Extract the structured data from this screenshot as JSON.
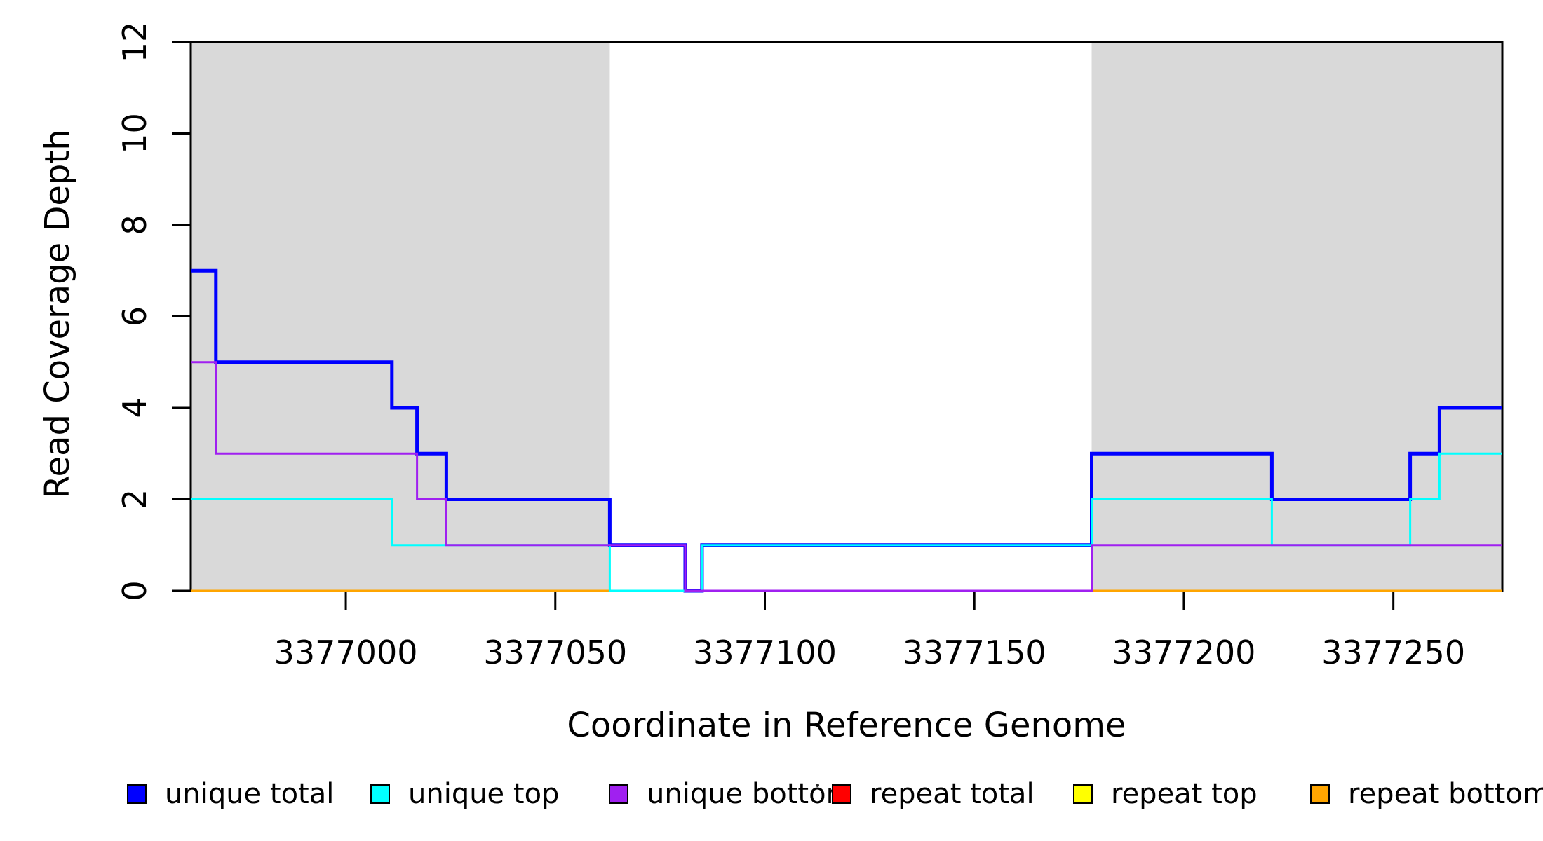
{
  "chart_data": {
    "type": "line",
    "subtype": "step",
    "title": "",
    "xlabel": "Coordinate in Reference Genome",
    "ylabel": "Read Coverage Depth",
    "xlim": [
      3376963,
      3377276
    ],
    "ylim": [
      0,
      12
    ],
    "x_ticks": [
      3377000,
      3377050,
      3377100,
      3377150,
      3377200,
      3377250
    ],
    "y_ticks": [
      0,
      2,
      4,
      6,
      8,
      10,
      12
    ],
    "grid": false,
    "background_color": "#ffffff",
    "axis_color": "#000000",
    "shade_color": "#d9d9d9",
    "shaded_regions": [
      {
        "x0": 3376963,
        "x1": 3377063
      },
      {
        "x0": 3377178,
        "x1": 3377276
      }
    ],
    "series": [
      {
        "name": "repeat total",
        "color": "#FF0000",
        "line_width": 3,
        "steps": [
          [
            3376963,
            0
          ],
          [
            3377276,
            0
          ]
        ]
      },
      {
        "name": "repeat top",
        "color": "#FFFF00",
        "line_width": 3,
        "steps": [
          [
            3376963,
            0
          ],
          [
            3377276,
            0
          ]
        ]
      },
      {
        "name": "repeat bottom",
        "color": "#FFA500",
        "line_width": 3,
        "steps": [
          [
            3376963,
            0
          ],
          [
            3377276,
            0
          ]
        ]
      },
      {
        "name": "unique total",
        "color": "#0000FF",
        "line_width": 5,
        "steps": [
          [
            3376963,
            7
          ],
          [
            3376969,
            5
          ],
          [
            3377011,
            4
          ],
          [
            3377017,
            3
          ],
          [
            3377024,
            2
          ],
          [
            3377063,
            1
          ],
          [
            3377081,
            0
          ],
          [
            3377085,
            1
          ],
          [
            3377178,
            3
          ],
          [
            3377221,
            2
          ],
          [
            3377254,
            3
          ],
          [
            3377261,
            4
          ],
          [
            3377276,
            4
          ]
        ]
      },
      {
        "name": "unique top",
        "color": "#00FFFF",
        "line_width": 3,
        "steps": [
          [
            3376963,
            2
          ],
          [
            3377011,
            1
          ],
          [
            3377063,
            0
          ],
          [
            3377085,
            1
          ],
          [
            3377178,
            2
          ],
          [
            3377221,
            1
          ],
          [
            3377254,
            2
          ],
          [
            3377261,
            3
          ],
          [
            3377276,
            3
          ]
        ]
      },
      {
        "name": "unique bottom",
        "color": "#A020F0",
        "line_width": 3,
        "steps": [
          [
            3376963,
            5
          ],
          [
            3376969,
            3
          ],
          [
            3377017,
            2
          ],
          [
            3377024,
            1
          ],
          [
            3377081,
            0
          ],
          [
            3377178,
            1
          ],
          [
            3377276,
            1
          ]
        ]
      }
    ],
    "draw_order": [
      "repeat total",
      "repeat top",
      "repeat bottom",
      "unique total",
      "unique top",
      "unique bottom"
    ],
    "legend": {
      "position": "bottom",
      "entries": [
        {
          "label": "unique total",
          "color": "#0000FF"
        },
        {
          "label": "unique top",
          "color": "#00FFFF"
        },
        {
          "label": "unique bottom",
          "color": "#A020F0"
        },
        {
          "label": "repeat total",
          "color": "#FF0000"
        },
        {
          "label": "repeat top",
          "color": "#FFFF00"
        },
        {
          "label": "repeat bottom",
          "color": "#FFA500"
        }
      ]
    }
  }
}
